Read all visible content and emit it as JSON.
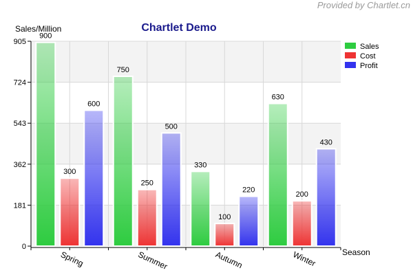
{
  "watermark": "Provided by Chartlet.cn",
  "chart_data": {
    "type": "bar",
    "title": "Chartlet Demo",
    "ylabel": "Sales/Million",
    "xlabel": "Season",
    "categories": [
      "Spring",
      "Summer",
      "Autumn",
      "Winter"
    ],
    "series": [
      {
        "name": "Sales",
        "values": [
          900,
          750,
          330,
          630
        ],
        "color": "#2ecc40"
      },
      {
        "name": "Cost",
        "values": [
          300,
          250,
          100,
          200
        ],
        "color": "#ee3333"
      },
      {
        "name": "Profit",
        "values": [
          600,
          500,
          220,
          430
        ],
        "color": "#3333ee"
      }
    ],
    "ylim": [
      0,
      905
    ],
    "yticks": [
      0,
      181,
      362,
      543,
      724,
      905
    ],
    "grid": true,
    "legend": "top-right",
    "colors": {
      "title": "#1a1a8c",
      "band": "#f3f3f3",
      "grid": "#d8d8d8"
    }
  }
}
